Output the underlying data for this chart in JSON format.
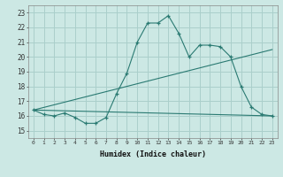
{
  "title": "",
  "xlabel": "Humidex (Indice chaleur)",
  "background_color": "#cce8e4",
  "grid_color": "#aacfcb",
  "line_color": "#2a7a72",
  "xlim": [
    -0.5,
    23.5
  ],
  "ylim": [
    14.5,
    23.5
  ],
  "xticks": [
    0,
    1,
    2,
    3,
    4,
    5,
    6,
    7,
    8,
    9,
    10,
    11,
    12,
    13,
    14,
    15,
    16,
    17,
    18,
    19,
    20,
    21,
    22,
    23
  ],
  "yticks": [
    15,
    16,
    17,
    18,
    19,
    20,
    21,
    22,
    23
  ],
  "series1_x": [
    0,
    1,
    2,
    3,
    4,
    5,
    6,
    7,
    8,
    9,
    10,
    11,
    12,
    13,
    14,
    15,
    16,
    17,
    18,
    19,
    20,
    21,
    22,
    23
  ],
  "series1_y": [
    16.4,
    16.1,
    16.0,
    16.2,
    15.9,
    15.5,
    15.5,
    15.9,
    17.5,
    18.9,
    21.0,
    22.3,
    22.3,
    22.8,
    21.6,
    20.0,
    20.8,
    20.8,
    20.7,
    20.0,
    18.0,
    16.6,
    16.1,
    16.0
  ],
  "series2_x": [
    0,
    23
  ],
  "series2_y": [
    16.4,
    16.0
  ],
  "series3_x": [
    0,
    23
  ],
  "series3_y": [
    16.4,
    20.5
  ]
}
